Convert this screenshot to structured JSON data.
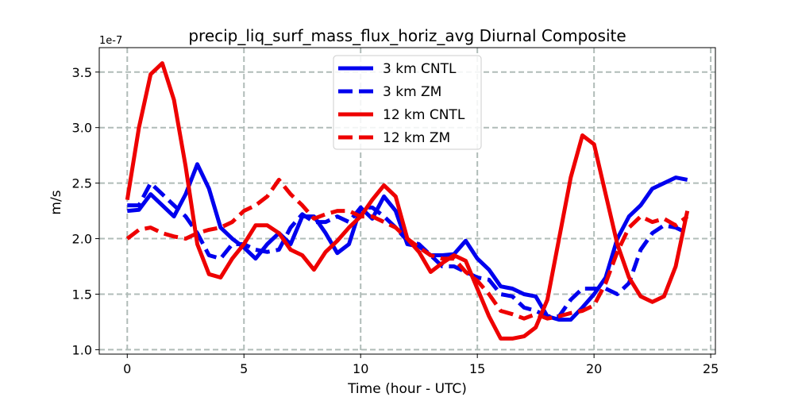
{
  "chart_data": {
    "type": "line",
    "title": "precip_liq_surf_mass_flux_horiz_avg Diurnal Composite",
    "xlabel": "Time (hour - UTC)",
    "ylabel": "m/s",
    "y_offset_label": "1e-7",
    "xlim": [
      -1.2,
      25.2
    ],
    "ylim": [
      0.96,
      3.72
    ],
    "xticks": [
      0,
      5,
      10,
      15,
      20,
      25
    ],
    "xtick_labels": [
      "0",
      "5",
      "10",
      "15",
      "20",
      "25"
    ],
    "yticks": [
      1.0,
      1.5,
      2.0,
      2.5,
      3.0,
      3.5
    ],
    "ytick_labels": [
      "1.0",
      "1.5",
      "2.0",
      "2.5",
      "3.0",
      "3.5"
    ],
    "grid": true,
    "legend_position": "top-center",
    "x": [
      0,
      0.5,
      1,
      1.5,
      2,
      2.5,
      3,
      3.5,
      4,
      4.5,
      5,
      5.5,
      6,
      6.5,
      7,
      7.5,
      8,
      8.5,
      9,
      9.5,
      10,
      10.5,
      11,
      11.5,
      12,
      12.5,
      13,
      13.5,
      14,
      14.5,
      15,
      15.5,
      16,
      16.5,
      17,
      17.5,
      18,
      18.5,
      19,
      19.5,
      20,
      20.5,
      21,
      21.5,
      22,
      22.5,
      23,
      23.5,
      24
    ],
    "series": [
      {
        "name": "3 km CNTL",
        "color": "#0000ee",
        "dash": "solid",
        "values": [
          2.25,
          2.26,
          2.4,
          2.3,
          2.2,
          2.4,
          2.67,
          2.45,
          2.1,
          2.0,
          1.92,
          1.82,
          1.95,
          2.05,
          1.95,
          2.2,
          2.2,
          2.05,
          1.87,
          1.95,
          2.28,
          2.18,
          2.38,
          2.25,
          1.95,
          1.93,
          1.85,
          1.85,
          1.86,
          1.98,
          1.82,
          1.72,
          1.57,
          1.55,
          1.5,
          1.48,
          1.3,
          1.27,
          1.27,
          1.38,
          1.5,
          1.65,
          2.0,
          2.2,
          2.3,
          2.45,
          2.5,
          2.55,
          2.53
        ]
      },
      {
        "name": "3 km ZM",
        "color": "#0000ee",
        "dash": "dashed",
        "values": [
          2.3,
          2.3,
          2.5,
          2.4,
          2.3,
          2.2,
          2.05,
          1.85,
          1.82,
          1.95,
          1.95,
          1.9,
          1.88,
          1.9,
          2.1,
          2.22,
          2.15,
          2.15,
          2.2,
          2.15,
          2.28,
          2.28,
          2.2,
          2.1,
          1.98,
          1.95,
          1.85,
          1.75,
          1.75,
          1.7,
          1.65,
          1.63,
          1.5,
          1.48,
          1.38,
          1.35,
          1.3,
          1.3,
          1.45,
          1.55,
          1.55,
          1.55,
          1.5,
          1.6,
          1.9,
          2.05,
          2.12,
          2.1,
          2.05
        ]
      },
      {
        "name": "12 km CNTL",
        "color": "#ee0000",
        "dash": "solid",
        "values": [
          2.35,
          3.0,
          3.48,
          3.58,
          3.25,
          2.65,
          1.95,
          1.68,
          1.65,
          1.82,
          1.95,
          2.12,
          2.12,
          2.05,
          1.9,
          1.85,
          1.72,
          1.88,
          1.98,
          2.1,
          2.2,
          2.35,
          2.48,
          2.38,
          2.0,
          1.88,
          1.7,
          1.78,
          1.85,
          1.8,
          1.55,
          1.3,
          1.1,
          1.1,
          1.12,
          1.2,
          1.45,
          2.0,
          2.55,
          2.93,
          2.85,
          2.4,
          1.95,
          1.65,
          1.48,
          1.43,
          1.48,
          1.75,
          2.25
        ]
      },
      {
        "name": "12 km ZM",
        "color": "#ee0000",
        "dash": "dashed",
        "values": [
          2.0,
          2.08,
          2.1,
          2.05,
          2.02,
          2.0,
          2.05,
          2.08,
          2.1,
          2.15,
          2.25,
          2.3,
          2.38,
          2.53,
          2.4,
          2.3,
          2.18,
          2.22,
          2.25,
          2.25,
          2.2,
          2.2,
          2.15,
          2.1,
          2.0,
          1.92,
          1.85,
          1.82,
          1.82,
          1.7,
          1.62,
          1.5,
          1.35,
          1.32,
          1.28,
          1.32,
          1.28,
          1.3,
          1.33,
          1.35,
          1.4,
          1.6,
          1.88,
          2.1,
          2.2,
          2.15,
          2.18,
          2.12,
          2.2
        ]
      }
    ]
  }
}
